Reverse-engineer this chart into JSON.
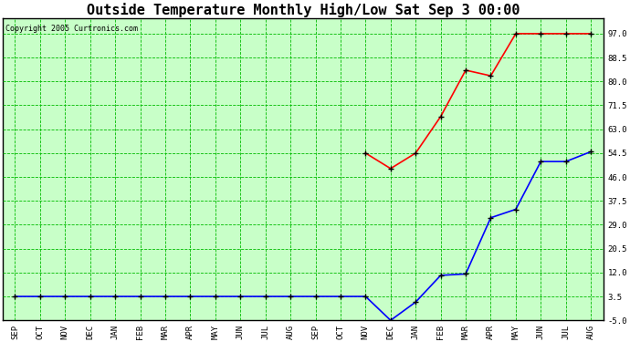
{
  "title": "Outside Temperature Monthly High/Low Sat Sep 3 00:00",
  "copyright": "Copyright 2005 Curtronics.com",
  "x_labels": [
    "SEP",
    "OCT",
    "NOV",
    "DEC",
    "JAN",
    "FEB",
    "MAR",
    "APR",
    "MAY",
    "JUN",
    "JUL",
    "AUG",
    "SEP",
    "OCT",
    "NOV",
    "DEC",
    "JAN",
    "FEB",
    "MAR",
    "APR",
    "MAY",
    "JUN",
    "JUL",
    "AUG"
  ],
  "high_values": [
    null,
    null,
    null,
    null,
    null,
    null,
    null,
    null,
    null,
    null,
    null,
    null,
    null,
    null,
    54.5,
    49.0,
    54.5,
    67.5,
    84.0,
    82.0,
    97.0,
    97.0,
    97.0,
    97.0
  ],
  "low_values": [
    3.5,
    3.5,
    3.5,
    3.5,
    3.5,
    3.5,
    3.5,
    3.5,
    3.5,
    3.5,
    3.5,
    3.5,
    3.5,
    3.5,
    3.5,
    -5.0,
    1.5,
    11.0,
    11.5,
    31.5,
    34.5,
    51.5,
    51.5,
    55.0
  ],
  "ylim": [
    -5.0,
    102.5
  ],
  "yticks": [
    -5.0,
    3.5,
    12.0,
    20.5,
    29.0,
    37.5,
    46.0,
    54.5,
    63.0,
    71.5,
    80.0,
    88.5,
    97.0
  ],
  "background_color": "#c8ffc8",
  "grid_color": "#00bb00",
  "high_color": "red",
  "low_color": "blue",
  "marker": "+",
  "marker_color": "black",
  "title_fontsize": 11,
  "axis_fontsize": 6.5,
  "copyright_fontsize": 6
}
